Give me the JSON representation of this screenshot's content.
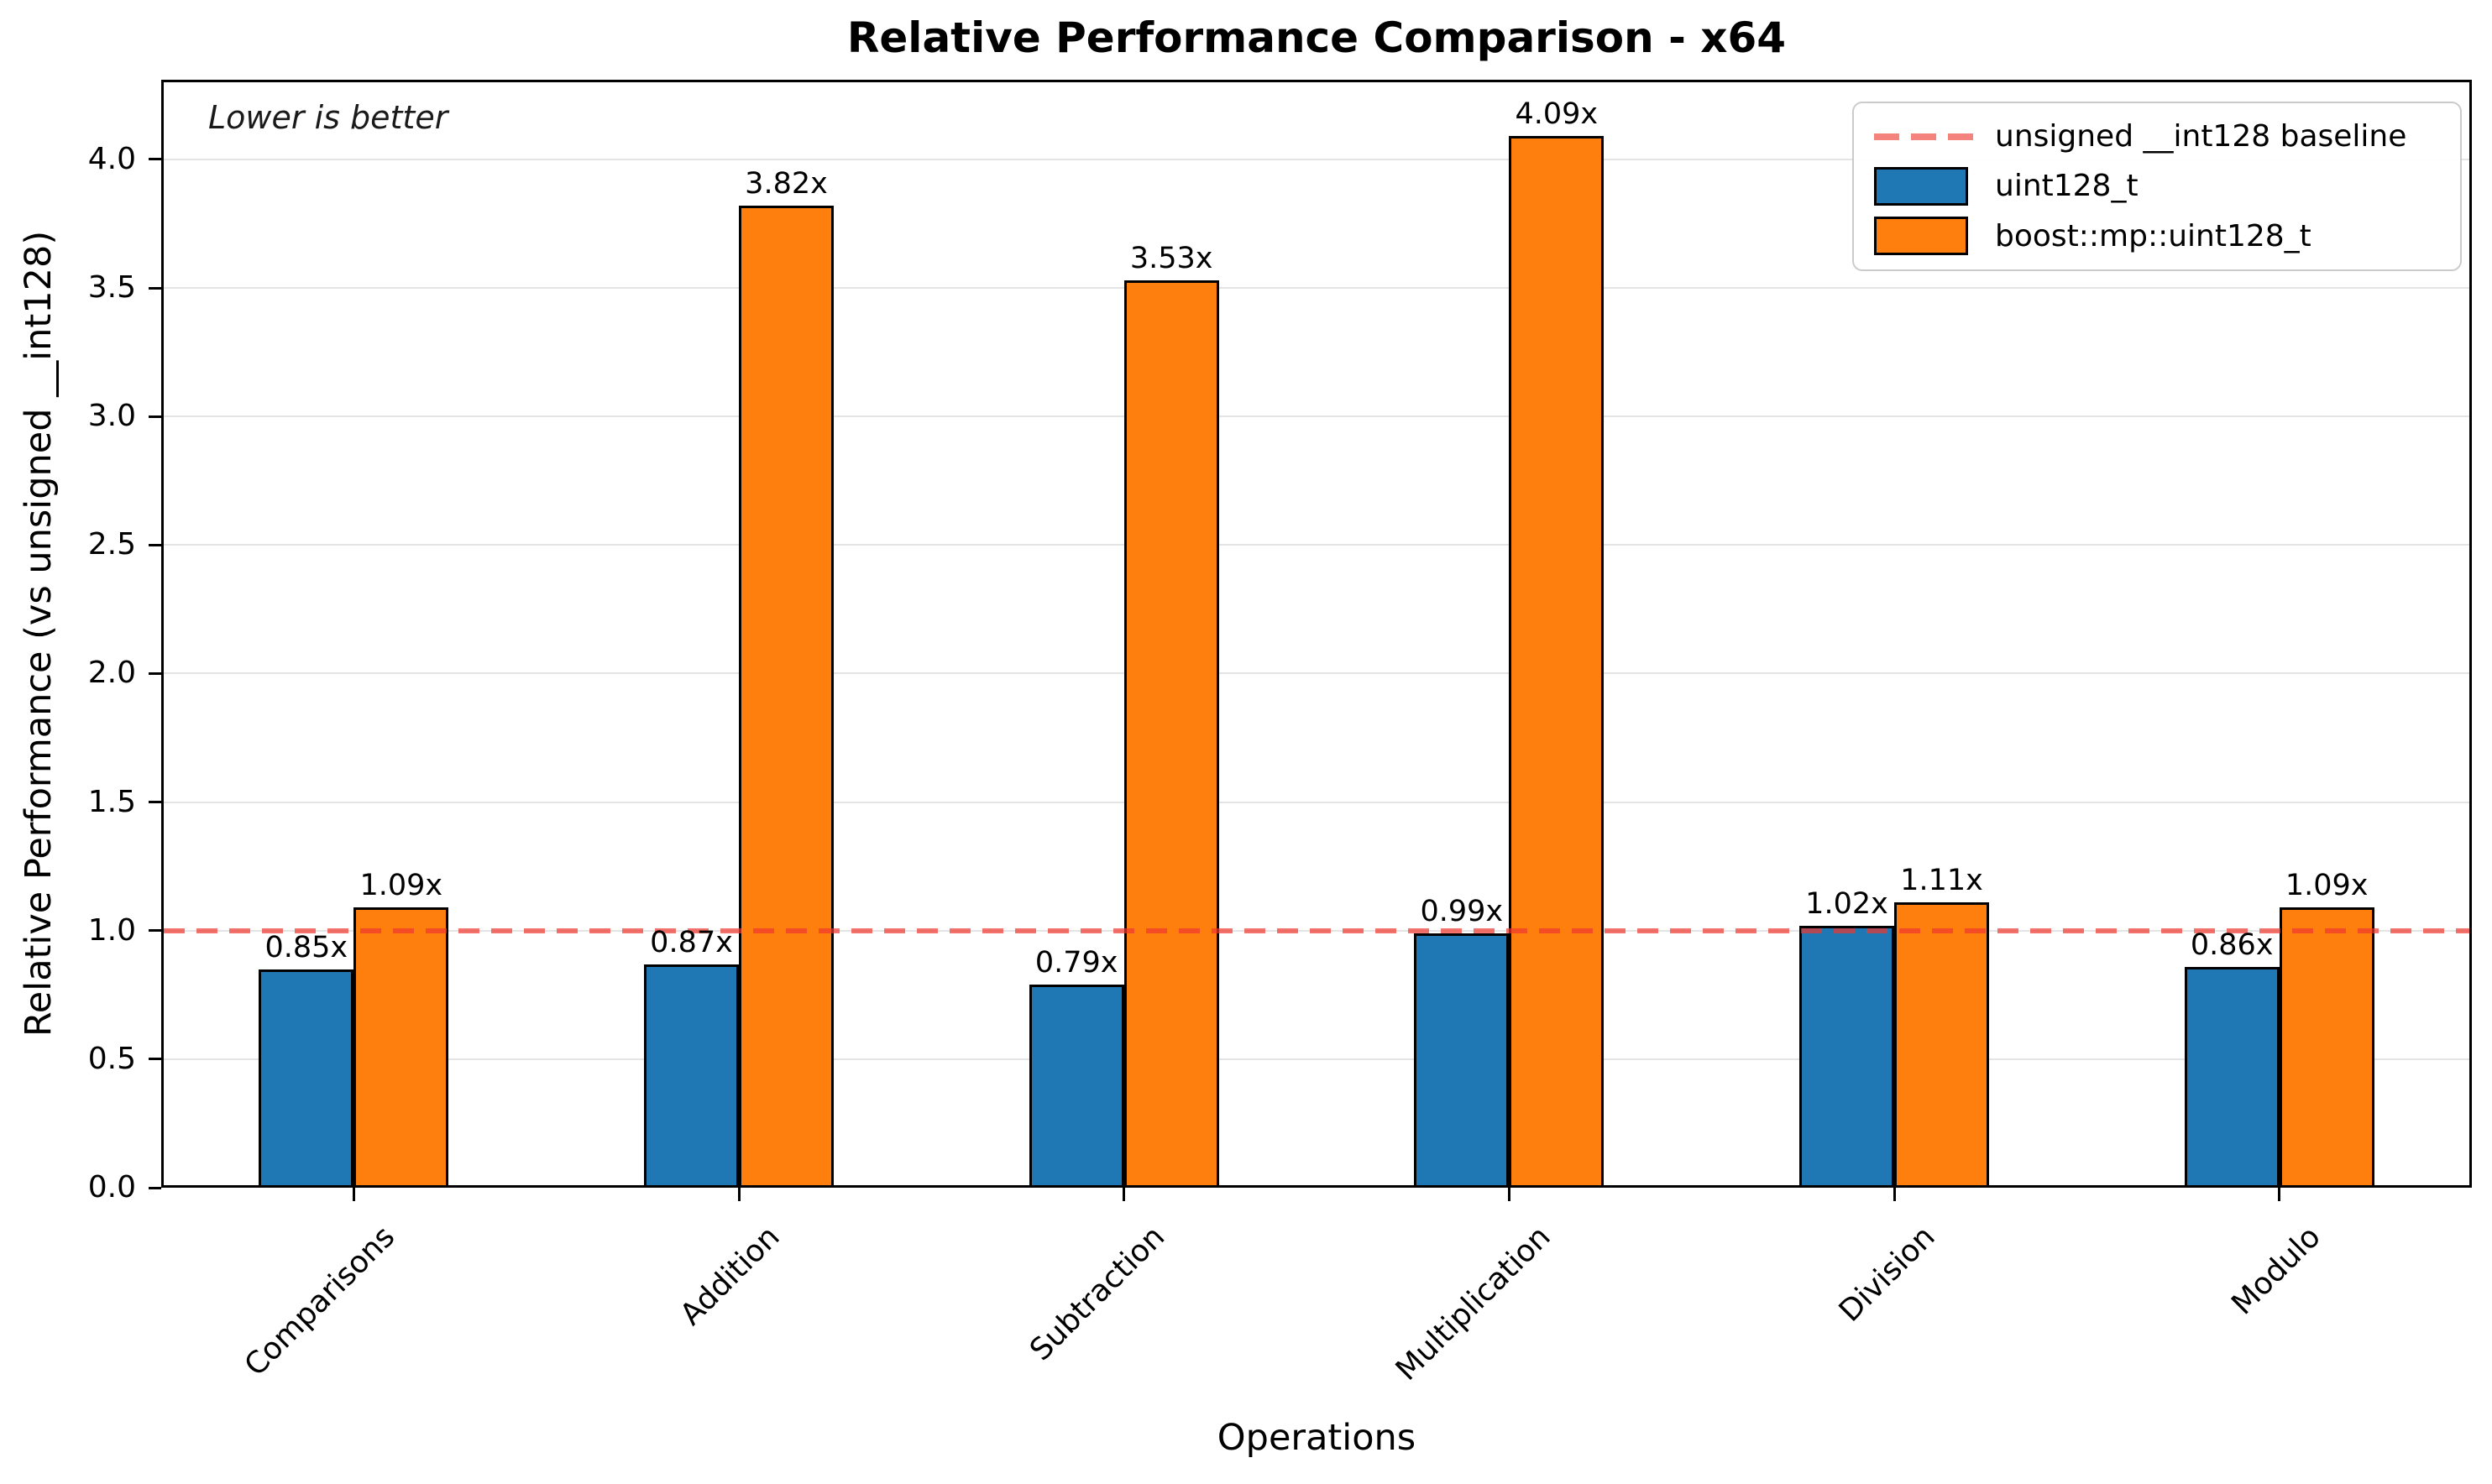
{
  "chart_data": {
    "type": "bar",
    "title": "Relative Performance Comparison - x64",
    "annotation": "Lower is better",
    "xlabel": "Operations",
    "ylabel": "Relative Performance (vs unsigned __int128)",
    "categories": [
      "Comparisons",
      "Addition",
      "Subtraction",
      "Multiplication",
      "Division",
      "Modulo"
    ],
    "series": [
      {
        "name": "uint128_t",
        "color": "#1f77b4",
        "values": [
          0.85,
          0.87,
          0.79,
          0.99,
          1.02,
          0.86
        ],
        "value_labels": [
          "0.85x",
          "0.87x",
          "0.79x",
          "0.99x",
          "1.02x",
          "0.86x"
        ]
      },
      {
        "name": "boost::mp::uint128_t",
        "color": "#ff7f0e",
        "values": [
          1.09,
          3.82,
          3.53,
          4.09,
          1.11,
          1.09
        ],
        "value_labels": [
          "1.09x",
          "3.82x",
          "3.53x",
          "4.09x",
          "1.11x",
          "1.09x"
        ]
      }
    ],
    "baseline": {
      "value": 1.0,
      "label": "unsigned __int128 baseline",
      "swatch_color": "#f4837d",
      "line_color": "rgba(240,55,45,0.70)"
    },
    "ylim": [
      0,
      4.31
    ],
    "yticks": [
      0,
      0.5,
      1,
      1.5,
      2,
      2.5,
      3,
      3.5,
      4
    ],
    "ytick_labels": [
      "0.0",
      "0.5",
      "1.0",
      "1.5",
      "2.0",
      "2.5",
      "3.0",
      "3.5",
      "4.0"
    ],
    "grid": true,
    "legend_position": "upper right",
    "legend_items": [
      {
        "sample": "dashed-line",
        "label": "unsigned __int128 baseline",
        "color": "#f4837d"
      },
      {
        "sample": "patch",
        "label": "uint128_t",
        "color": "#1f77b4"
      },
      {
        "sample": "patch",
        "label": "boost::mp::uint128_t",
        "color": "#ff7f0e"
      }
    ]
  }
}
